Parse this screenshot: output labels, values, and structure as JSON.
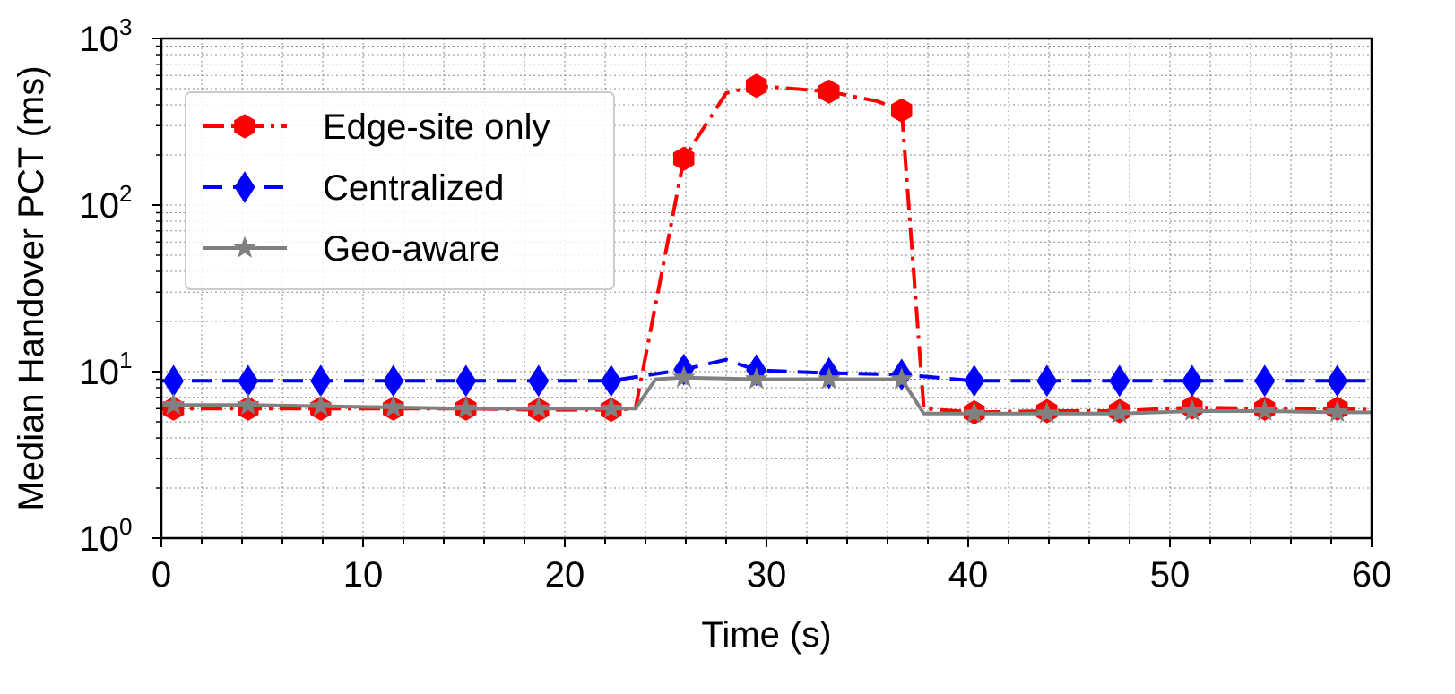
{
  "chart_data": {
    "type": "line",
    "xlabel": "Time (s)",
    "ylabel": "Median Handover PCT (ms)",
    "xlim": [
      0,
      60
    ],
    "ylim": [
      1,
      1000
    ],
    "y_scale": "log",
    "grid": true,
    "legend_position": "upper-left",
    "x_ticks": [
      "0",
      "10",
      "20",
      "30",
      "40",
      "50",
      "60"
    ],
    "y_ticks": [
      {
        "base": "10",
        "exp": "0"
      },
      {
        "base": "10",
        "exp": "1"
      },
      {
        "base": "10",
        "exp": "2"
      },
      {
        "base": "10",
        "exp": "3"
      }
    ],
    "series": [
      {
        "name": "Edge-site only",
        "color": "#ff0000",
        "line_style": "dash-dot",
        "marker": "hexagon",
        "x": [
          0,
          0.6,
          4.3,
          7.9,
          11.5,
          15.1,
          18.7,
          22.3,
          23.5,
          25.9,
          28.0,
          29.5,
          33.1,
          35.5,
          36.7,
          37.8,
          40.3,
          43.9,
          47.5,
          51.1,
          54.7,
          58.3,
          60
        ],
        "y": [
          6.0,
          6.0,
          6.0,
          6.0,
          6.0,
          6.0,
          5.9,
          5.9,
          6.0,
          190,
          470,
          520,
          480,
          420,
          370,
          6.0,
          5.7,
          5.8,
          5.8,
          6.1,
          6.0,
          6.0,
          5.9
        ],
        "marker_x": [
          0.6,
          4.3,
          7.9,
          11.5,
          15.1,
          18.7,
          22.3,
          25.9,
          29.5,
          33.1,
          36.7,
          40.3,
          43.9,
          47.5,
          51.1,
          54.7,
          58.3
        ]
      },
      {
        "name": "Centralized",
        "color": "#0000ff",
        "line_style": "dashed",
        "marker": "diamond",
        "x": [
          0,
          0.6,
          4.3,
          7.9,
          11.5,
          15.1,
          18.7,
          22.3,
          25.9,
          28.0,
          29.5,
          33.1,
          36.7,
          40.3,
          43.9,
          47.5,
          51.1,
          54.7,
          58.3,
          60
        ],
        "y": [
          8.8,
          8.8,
          8.8,
          8.8,
          8.8,
          8.8,
          8.8,
          8.8,
          10.3,
          11.8,
          10.2,
          9.8,
          9.6,
          8.8,
          8.8,
          8.8,
          8.8,
          8.8,
          8.8,
          8.8
        ],
        "marker_x": [
          0.6,
          4.3,
          7.9,
          11.5,
          15.1,
          18.7,
          22.3,
          25.9,
          29.5,
          33.1,
          36.7,
          40.3,
          43.9,
          47.5,
          51.1,
          54.7,
          58.3
        ]
      },
      {
        "name": "Geo-aware",
        "color": "#808080",
        "line_style": "solid",
        "marker": "star",
        "x": [
          0,
          0.6,
          4.3,
          7.9,
          11.5,
          15.1,
          18.7,
          22.3,
          23.5,
          24.5,
          25.9,
          29.5,
          33.1,
          36.7,
          37.8,
          40.3,
          43.9,
          47.5,
          51.1,
          54.7,
          58.3,
          60
        ],
        "y": [
          6.3,
          6.3,
          6.3,
          6.2,
          6.1,
          6.0,
          6.0,
          6.0,
          6.0,
          9.0,
          9.2,
          9.0,
          9.0,
          9.0,
          5.6,
          5.6,
          5.6,
          5.6,
          5.8,
          5.8,
          5.7,
          5.7
        ],
        "marker_x": [
          0.6,
          4.3,
          7.9,
          11.5,
          15.1,
          18.7,
          22.3,
          25.9,
          29.5,
          33.1,
          36.7,
          40.3,
          43.9,
          47.5,
          51.1,
          54.7,
          58.3
        ]
      }
    ]
  }
}
